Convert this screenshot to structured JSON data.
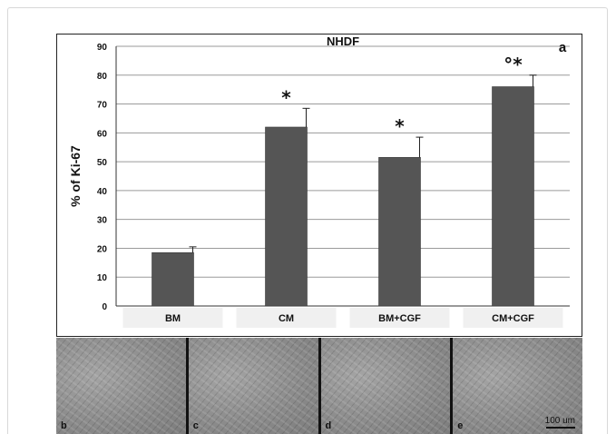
{
  "chart_data": {
    "type": "bar",
    "title": "NHDF",
    "panel_label": "a",
    "ylabel": "% of Ki-67",
    "xlabel": "",
    "ylim": [
      0,
      90
    ],
    "yticks": [
      0,
      10,
      20,
      30,
      40,
      50,
      60,
      70,
      80,
      90
    ],
    "grid": true,
    "categories": [
      "BM",
      "CM",
      "BM+CGF",
      "CM+CGF"
    ],
    "values": [
      18.5,
      62,
      51.5,
      76
    ],
    "errors": [
      2,
      6.5,
      7,
      4
    ],
    "annotations": [
      "",
      "*",
      "*",
      "°*"
    ],
    "bar_color": "#555555"
  },
  "micrographs": {
    "labels": [
      "b",
      "c",
      "d",
      "e"
    ],
    "scale_bar": "100 um"
  }
}
